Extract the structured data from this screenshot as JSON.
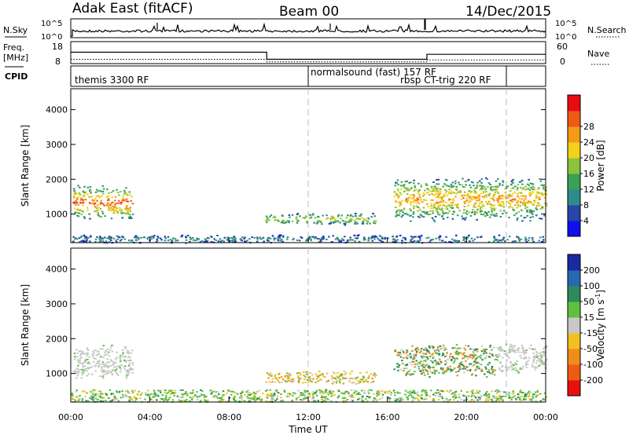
{
  "header": {
    "station": "Adak East (fitACF)",
    "beam": "Beam 00",
    "date": "14/Dec/2015"
  },
  "panels": {
    "nsky": {
      "label": "N.Sky",
      "left_ticks": [
        "10^5",
        "10^0"
      ],
      "right_ticks": [
        "10^5",
        "10^0"
      ],
      "right_label": "N.Search"
    },
    "freq": {
      "label": "Freq.",
      "unit": "[MHz]",
      "left_ticks": [
        "18",
        "8"
      ],
      "right_ticks": [
        "60",
        "0"
      ],
      "right_label": "Nave"
    },
    "cpid": {
      "label": "CPID",
      "segments": [
        {
          "text": "themis 3300 RF"
        },
        {
          "text": "normalsound (fast) 157 RF"
        },
        {
          "text": "rbsp CT-trig 220 RF"
        }
      ]
    }
  },
  "axes": {
    "slant_range_label": "Slant Range [km]",
    "y_ticks": [
      "1000",
      "2000",
      "3000",
      "4000"
    ],
    "x_ticks": [
      "00:00",
      "04:00",
      "08:00",
      "12:00",
      "16:00",
      "20:00",
      "00:00"
    ],
    "x_label": "Time UT"
  },
  "colorbars": {
    "power": {
      "label": "Power [dB]",
      "ticks": [
        "4",
        "8",
        "12",
        "16",
        "20",
        "24",
        "28"
      ],
      "colors": [
        "#1010ee",
        "#2845a8",
        "#2d8c8c",
        "#3aa055",
        "#8cc23c",
        "#f2d21a",
        "#f59a16",
        "#ee5a14",
        "#e80c10"
      ]
    },
    "velocity": {
      "label": "Velocity [m s",
      "label_sup": "-1",
      "label_end": "]",
      "ticks": [
        "200",
        "100",
        "50",
        "15",
        "-15",
        "-50",
        "-100",
        "-200"
      ],
      "colors": [
        "#1a2aa0",
        "#2868b0",
        "#2e8a5a",
        "#5fc040",
        "#c8c8c8",
        "#f2c020",
        "#f08c1a",
        "#ee5a14",
        "#e81010"
      ]
    }
  },
  "chart_data": {
    "type": "heatmap",
    "x_range_hours": [
      0,
      24
    ],
    "y_range_km": [
      180,
      4600
    ],
    "freq_mhz": [
      {
        "t0": 0.0,
        "t1": 9.9,
        "value": 15.5
      },
      {
        "t0": 9.9,
        "t1": 18.0,
        "value": 10.5
      },
      {
        "t0": 18.0,
        "t1": 24.0,
        "value": 14.0
      }
    ],
    "nave": [
      {
        "t0": 0.0,
        "t1": 9.9,
        "value": 15
      },
      {
        "t0": 9.9,
        "t1": 18.0,
        "value": 4
      },
      {
        "t0": 18.0,
        "t1": 24.0,
        "value": 12
      }
    ],
    "cpid_boundaries_hours": [
      12.0,
      22.0
    ],
    "power_echo_regions": [
      {
        "t0": 0.1,
        "t1": 3.1,
        "r0": 850,
        "r1": 1850,
        "peak_db": 26
      },
      {
        "t0": 9.8,
        "t1": 15.4,
        "r0": 700,
        "r1": 1050,
        "peak_db": 18
      },
      {
        "t0": 16.3,
        "t1": 24.0,
        "r0": 800,
        "r1": 2100,
        "peak_db": 22
      },
      {
        "t0": 0.0,
        "t1": 24.0,
        "r0": 180,
        "r1": 420,
        "peak_db": 10
      }
    ],
    "velocity_echo_regions": [
      {
        "t0": 0.1,
        "t1": 3.1,
        "r0": 850,
        "r1": 1850,
        "class": "ground"
      },
      {
        "t0": 9.8,
        "t1": 15.4,
        "r0": 700,
        "r1": 1100,
        "class": "mixed"
      },
      {
        "t0": 16.3,
        "t1": 21.5,
        "r0": 900,
        "r1": 1900,
        "class": "positive"
      },
      {
        "t0": 21.5,
        "t1": 24.0,
        "r0": 1000,
        "r1": 1900,
        "class": "ground"
      }
    ]
  }
}
